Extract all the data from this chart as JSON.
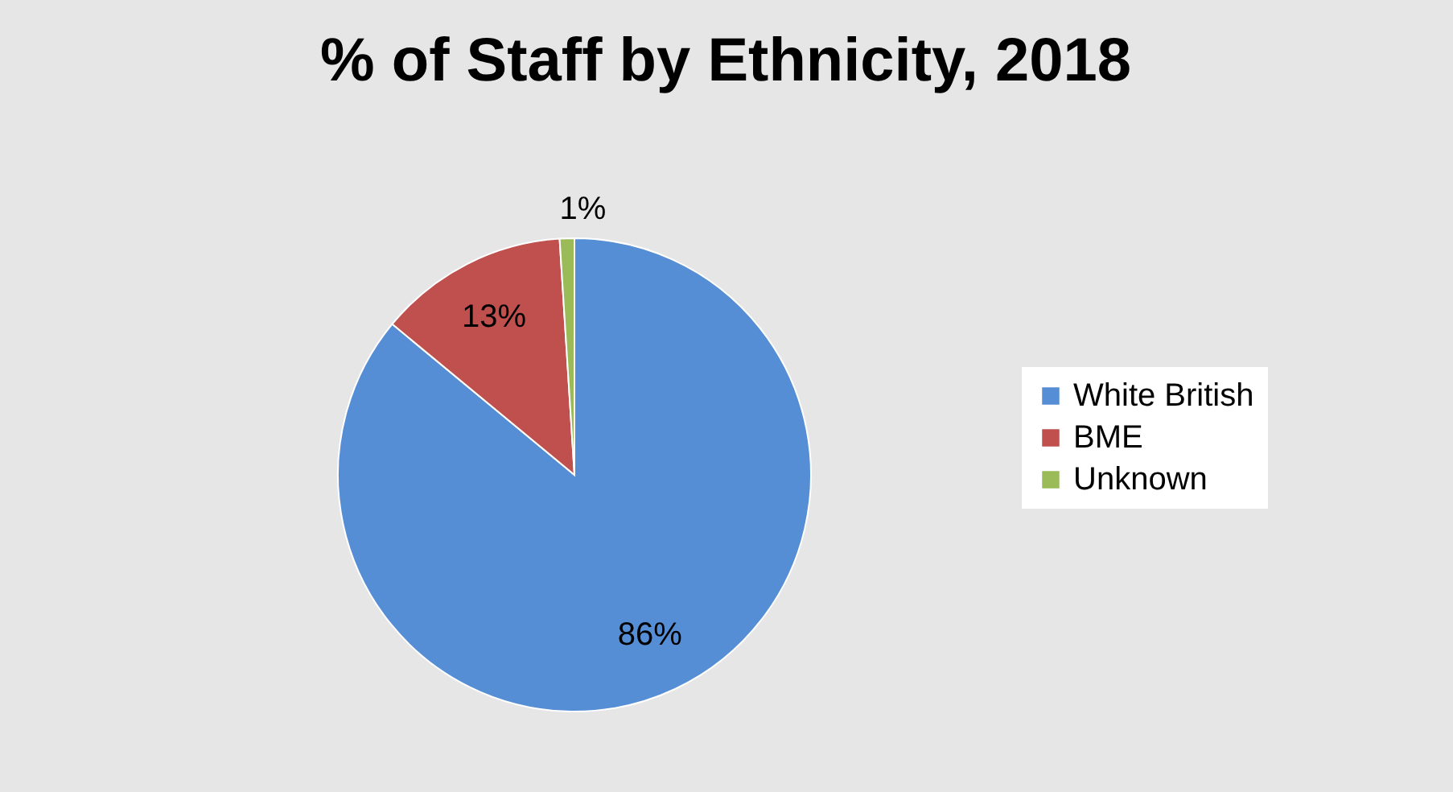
{
  "chart_data": {
    "type": "pie",
    "title": "% of Staff by Ethnicity, 2018",
    "categories": [
      "White British",
      "BME",
      "Unknown"
    ],
    "values": [
      86,
      13,
      1
    ],
    "colors": [
      "#558ed5",
      "#c0504d",
      "#9bbb59"
    ],
    "value_labels": [
      "86%",
      "13%",
      "1%"
    ],
    "legend": "right"
  }
}
